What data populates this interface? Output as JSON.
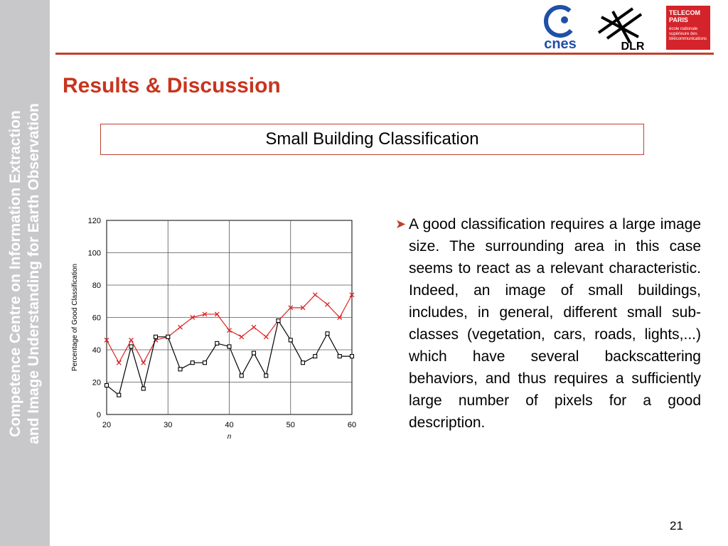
{
  "sidebar": {
    "line1": "Competence Centre on Information Extraction",
    "line2": "and Image Understanding for Earth Observation"
  },
  "logos": {
    "cnes": "cnes",
    "dlr": "DLR",
    "telecom_line1": "TELECOM",
    "telecom_line2": "PARIS",
    "telecom_line3": "école nationale supérieure des télécommunications"
  },
  "slide": {
    "title": "Results & Discussion",
    "subtitle": "Small Building Classification",
    "bullet": "A good classification requires a large image size. The surrounding area in this case seems to react as a relevant characteristic. Indeed, an image of small buildings, includes, in general, different small sub-classes (vegetation, cars, roads, lights,...) which have several backscattering behaviors, and thus requires a sufficiently large number of pixels for a good description.",
    "page_number": "21"
  },
  "colors": {
    "accent": "#c0402f",
    "title": "#c8351e",
    "sidebar": "#c8c8ca",
    "series_red": "#e02020",
    "series_black": "#000000"
  },
  "chart_data": {
    "type": "line",
    "xlabel": "n",
    "ylabel": "Percentage of Good Classification",
    "xlim": [
      20,
      60
    ],
    "ylim": [
      0,
      120
    ],
    "xticks": [
      20,
      30,
      40,
      50,
      60
    ],
    "yticks": [
      0,
      20,
      40,
      60,
      80,
      100,
      120
    ],
    "grid": true,
    "x": [
      20,
      22,
      24,
      26,
      28,
      30,
      32,
      34,
      36,
      38,
      40,
      42,
      44,
      46,
      48,
      50,
      52,
      54,
      56,
      58,
      60
    ],
    "series": [
      {
        "marker": "x",
        "color": "#e02020",
        "values": [
          46,
          32,
          46,
          32,
          46,
          48,
          54,
          60,
          62,
          62,
          52,
          48,
          54,
          48,
          58,
          66,
          66,
          74,
          68,
          60,
          74
        ]
      },
      {
        "marker": "square",
        "color": "#000000",
        "values": [
          18,
          12,
          42,
          16,
          48,
          48,
          28,
          32,
          32,
          44,
          42,
          24,
          38,
          24,
          58,
          46,
          32,
          36,
          50,
          36,
          36
        ]
      }
    ]
  }
}
